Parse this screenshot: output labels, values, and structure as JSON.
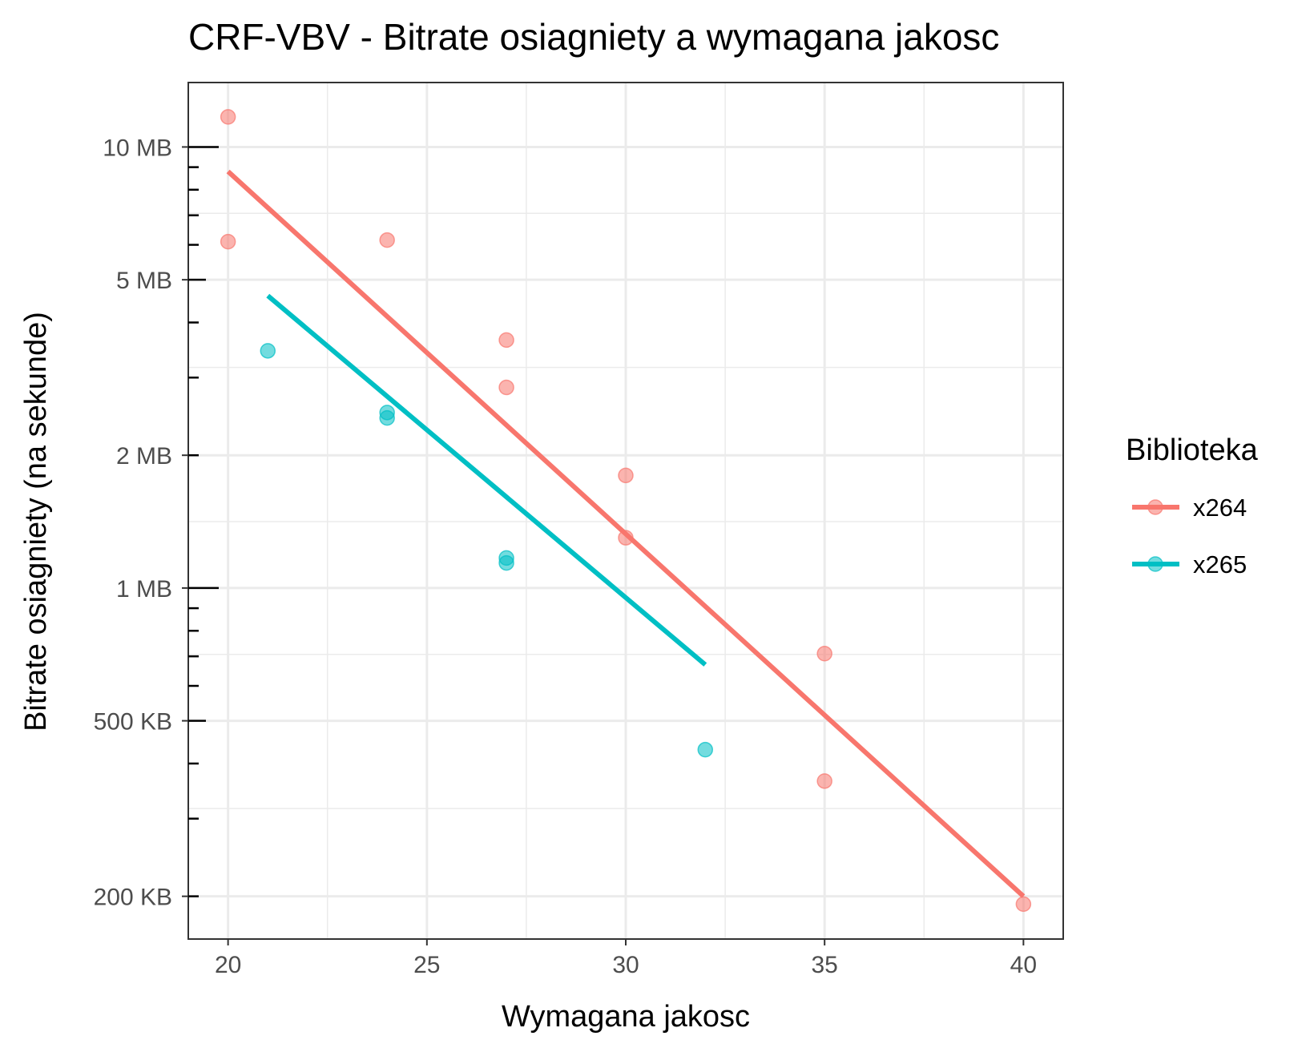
{
  "chart_data": {
    "type": "scatter",
    "title": "CRF-VBV - Bitrate osiagniety a wymagana jakosc",
    "xlabel": "Wymagana jakosc",
    "ylabel": "Bitrate osiagniety (na sekunde)",
    "xlim": [
      19,
      41
    ],
    "ylim_bytes": [
      160000,
      14000000
    ],
    "y_scale": "log10",
    "grid": true,
    "legend": {
      "title": "Biblioteka",
      "placement": "right"
    },
    "x_ticks": [
      {
        "value": 20,
        "label": "20"
      },
      {
        "value": 25,
        "label": "25"
      },
      {
        "value": 30,
        "label": "30"
      },
      {
        "value": 35,
        "label": "35"
      },
      {
        "value": 40,
        "label": "40"
      }
    ],
    "y_ticks": [
      {
        "value": 200000,
        "label": "200 KB"
      },
      {
        "value": 500000,
        "label": "500 KB"
      },
      {
        "value": 1000000,
        "label": "1 MB"
      },
      {
        "value": 2000000,
        "label": "2 MB"
      },
      {
        "value": 5000000,
        "label": "5 MB"
      },
      {
        "value": 10000000,
        "label": "10 MB"
      }
    ],
    "series": [
      {
        "name": "x264",
        "color": "#f8766d",
        "points": [
          {
            "x": 20,
            "y": 11700000
          },
          {
            "x": 20,
            "y": 6100000
          },
          {
            "x": 24,
            "y": 6150000
          },
          {
            "x": 27,
            "y": 3650000
          },
          {
            "x": 27,
            "y": 2850000
          },
          {
            "x": 30,
            "y": 1800000
          },
          {
            "x": 30,
            "y": 1300000
          },
          {
            "x": 35,
            "y": 710000
          },
          {
            "x": 35,
            "y": 365000
          },
          {
            "x": 40,
            "y": 192000
          }
        ],
        "fit": [
          {
            "x": 20,
            "y": 8800000
          },
          {
            "x": 40,
            "y": 200000
          }
        ]
      },
      {
        "name": "x265",
        "color": "#00bfc4",
        "points": [
          {
            "x": 21,
            "y": 3450000
          },
          {
            "x": 24,
            "y": 2500000
          },
          {
            "x": 24,
            "y": 2430000
          },
          {
            "x": 27,
            "y": 1170000
          },
          {
            "x": 27,
            "y": 1140000
          },
          {
            "x": 32,
            "y": 430000
          }
        ],
        "fit": [
          {
            "x": 21,
            "y": 4600000
          },
          {
            "x": 32,
            "y": 670000
          }
        ]
      }
    ]
  }
}
